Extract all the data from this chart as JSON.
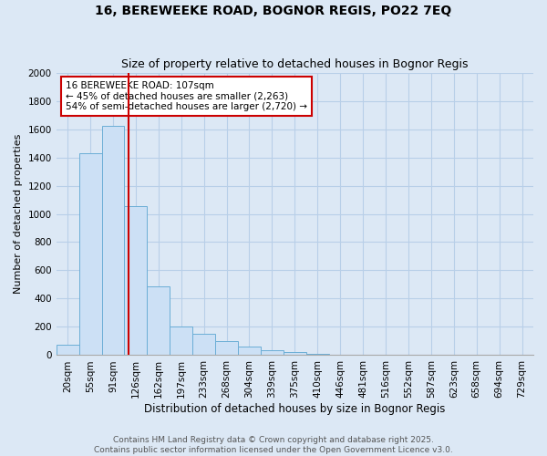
{
  "title": "16, BEREWEEKE ROAD, BOGNOR REGIS, PO22 7EQ",
  "subtitle": "Size of property relative to detached houses in Bognor Regis",
  "xlabel": "Distribution of detached houses by size in Bognor Regis",
  "ylabel": "Number of detached properties",
  "bin_labels": [
    "20sqm",
    "55sqm",
    "91sqm",
    "126sqm",
    "162sqm",
    "197sqm",
    "233sqm",
    "268sqm",
    "304sqm",
    "339sqm",
    "375sqm",
    "410sqm",
    "446sqm",
    "481sqm",
    "516sqm",
    "552sqm",
    "587sqm",
    "623sqm",
    "658sqm",
    "694sqm",
    "729sqm"
  ],
  "bar_heights": [
    75,
    1430,
    1620,
    1055,
    490,
    200,
    150,
    100,
    60,
    35,
    22,
    12,
    5,
    3,
    2,
    1,
    1,
    0,
    0,
    0,
    0
  ],
  "bar_color": "#cce0f5",
  "bar_edgecolor": "#6baed6",
  "background_color": "#dce8f5",
  "grid_color": "#b8cfe8",
  "red_line_x": 2.67,
  "red_line_color": "#cc0000",
  "annotation_text": "16 BEREWEEKE ROAD: 107sqm\n← 45% of detached houses are smaller (2,263)\n54% of semi-detached houses are larger (2,720) →",
  "annotation_box_facecolor": "#ffffff",
  "annotation_box_edgecolor": "#cc0000",
  "ylim": [
    0,
    2000
  ],
  "yticks": [
    0,
    200,
    400,
    600,
    800,
    1000,
    1200,
    1400,
    1600,
    1800,
    2000
  ],
  "footer_text": "Contains HM Land Registry data © Crown copyright and database right 2025.\nContains public sector information licensed under the Open Government Licence v3.0.",
  "title_fontsize": 10,
  "subtitle_fontsize": 9,
  "xlabel_fontsize": 8.5,
  "ylabel_fontsize": 8,
  "tick_fontsize": 7.5,
  "annotation_fontsize": 7.5
}
